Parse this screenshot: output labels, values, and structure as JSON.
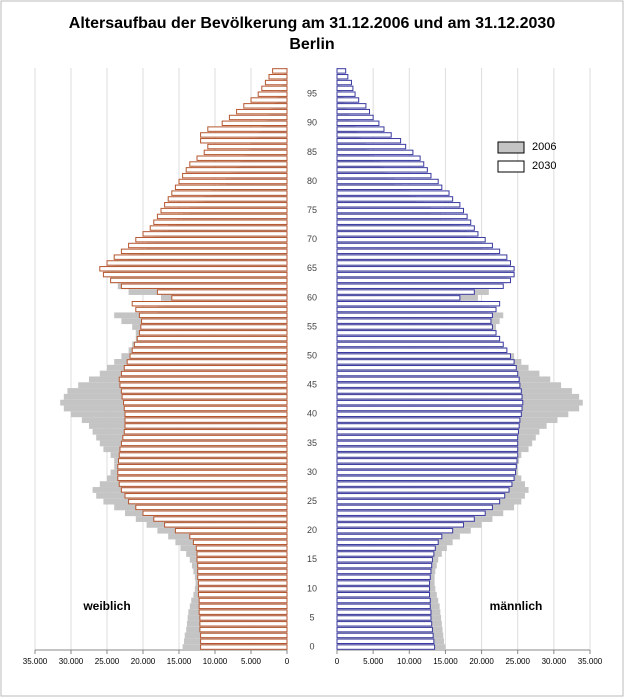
{
  "chart_data": {
    "type": "pyramid",
    "title": "Altersaufbau der Bevölkerung am 31.12.2006 und am 31.12.2030",
    "subtitle": "Berlin",
    "categories": [
      0,
      null,
      null,
      null,
      null,
      5,
      null,
      null,
      null,
      null,
      10,
      null,
      null,
      null,
      null,
      15,
      null,
      null,
      null,
      null,
      20,
      null,
      null,
      null,
      null,
      25,
      null,
      null,
      null,
      null,
      30,
      null,
      null,
      null,
      null,
      35,
      null,
      null,
      null,
      null,
      40,
      null,
      null,
      null,
      null,
      45,
      null,
      null,
      null,
      null,
      50,
      null,
      null,
      null,
      null,
      55,
      null,
      null,
      null,
      null,
      60,
      null,
      null,
      null,
      null,
      65,
      null,
      null,
      null,
      null,
      70,
      null,
      null,
      null,
      null,
      75,
      null,
      null,
      null,
      null,
      80,
      null,
      null,
      null,
      null,
      85,
      null,
      null,
      null,
      null,
      90,
      null,
      null,
      null,
      null,
      95,
      null,
      null,
      null,
      null
    ],
    "sides": {
      "female": {
        "label": "weiblich",
        "xlim": [
          35000,
          0
        ],
        "xticks": [
          {
            "value": 35000,
            "label": "35.000"
          },
          {
            "value": 30000,
            "label": "30.000"
          },
          {
            "value": 25000,
            "label": "25.000"
          },
          {
            "value": 20000,
            "label": "20.000"
          },
          {
            "value": 15000,
            "label": "15.000"
          },
          {
            "value": 10000,
            "label": "10.000"
          },
          {
            "value": 5000,
            "label": "5.000"
          },
          0
        ]
      },
      "male": {
        "label": "männlich",
        "xlim": [
          0,
          35000
        ],
        "xticks": [
          0,
          {
            "value": 5000,
            "label": "5.000"
          },
          {
            "value": 10000,
            "label": "10.000"
          },
          {
            "value": 15000,
            "label": "15.000"
          },
          {
            "value": 20000,
            "label": "20.000"
          },
          {
            "value": 25000,
            "label": "25.000"
          },
          {
            "value": 30000,
            "label": "30.000"
          },
          {
            "value": 35000,
            "label": "35.000"
          }
        ]
      }
    },
    "grid": true,
    "legend": "upper right",
    "series": [
      {
        "name": "2006",
        "color": "#c4c4c4",
        "female": [
          14500,
          14300,
          14200,
          14000,
          13900,
          13800,
          13700,
          13500,
          13300,
          13000,
          12800,
          12700,
          12800,
          13000,
          13200,
          13500,
          14000,
          14800,
          15500,
          16500,
          18000,
          19500,
          21000,
          22500,
          24000,
          25500,
          26500,
          27000,
          26000,
          25000,
          24500,
          24000,
          24000,
          24500,
          25500,
          26000,
          26500,
          27000,
          27500,
          28500,
          30000,
          31000,
          31500,
          31000,
          30500,
          29000,
          27500,
          26000,
          25000,
          24000,
          23000,
          22000,
          21500,
          21000,
          21000,
          21500,
          23000,
          24000,
          18000,
          17000,
          17500,
          22000,
          23500,
          24500,
          25000,
          25500,
          24000,
          22000,
          20500,
          19500,
          18500,
          17500,
          16500,
          15500,
          14500,
          13500,
          12500,
          11500,
          10500,
          9500,
          8500,
          7800,
          7000,
          6500,
          6000,
          5500,
          5000,
          4500,
          4000,
          3500,
          3000,
          2600,
          2200,
          1800,
          1400,
          1100,
          800,
          600,
          400,
          300
        ],
        "male": [
          15000,
          14800,
          14700,
          14600,
          14500,
          14400,
          14300,
          14200,
          14000,
          13800,
          13600,
          13500,
          13500,
          13600,
          13800,
          14000,
          14500,
          15200,
          16000,
          17000,
          18500,
          20000,
          21500,
          23000,
          24500,
          25500,
          26000,
          26500,
          26000,
          25500,
          25000,
          25000,
          25200,
          25500,
          26500,
          27000,
          27500,
          28000,
          29000,
          30500,
          32000,
          33500,
          34000,
          33500,
          32500,
          31000,
          29500,
          28000,
          26500,
          25500,
          24500,
          23500,
          23000,
          22500,
          22000,
          22000,
          22500,
          23000,
          21000,
          20000,
          19500,
          21000,
          22500,
          23500,
          24000,
          24500,
          23500,
          22000,
          21000,
          20000,
          19000,
          18000,
          17000,
          16000,
          14500,
          13000,
          12000,
          11000,
          10000,
          9000,
          8000,
          7000,
          6500,
          6000,
          5000,
          4500,
          4000,
          3500,
          3000,
          2600,
          2200,
          1800,
          1500,
          1200,
          900,
          700,
          500,
          400,
          300,
          200
        ]
      },
      {
        "name": "2030",
        "color": "#ffffff",
        "outline": {
          "female": "#b5562f",
          "male": "#3a3aa0"
        },
        "female": [
          12000,
          12000,
          12000,
          12100,
          12100,
          12100,
          12200,
          12200,
          12200,
          12300,
          12300,
          12300,
          12400,
          12400,
          12400,
          12500,
          12500,
          12600,
          13000,
          13500,
          15500,
          17000,
          18500,
          20000,
          21000,
          22000,
          22500,
          23000,
          23300,
          23500,
          23500,
          23500,
          23400,
          23300,
          23200,
          23000,
          22800,
          22600,
          22500,
          22500,
          22500,
          22600,
          22700,
          22900,
          23000,
          23200,
          23300,
          23000,
          22600,
          22200,
          21800,
          21500,
          21200,
          20800,
          20500,
          20300,
          20200,
          20500,
          21000,
          21500,
          16000,
          18000,
          23000,
          24500,
          25500,
          26000,
          25000,
          24000,
          23000,
          22000,
          21000,
          20000,
          19000,
          18500,
          18000,
          17500,
          17000,
          16500,
          16000,
          15500,
          15000,
          14500,
          14000,
          13500,
          12500,
          11500,
          11000,
          12000,
          12000,
          11000,
          9000,
          8000,
          7000,
          6000,
          5000,
          4000,
          3500,
          3000,
          2500,
          2000
        ],
        "male": [
          13500,
          13400,
          13300,
          13200,
          13100,
          13000,
          13000,
          12900,
          12900,
          12800,
          12800,
          12800,
          12900,
          13000,
          13100,
          13200,
          13400,
          13600,
          14000,
          14500,
          16000,
          17500,
          19000,
          20500,
          21500,
          22500,
          23200,
          23800,
          24200,
          24500,
          24700,
          24800,
          24900,
          25000,
          25000,
          25000,
          25000,
          25100,
          25200,
          25300,
          25500,
          25600,
          25700,
          25600,
          25500,
          25300,
          25200,
          25000,
          24800,
          24500,
          24000,
          23500,
          23000,
          22500,
          22000,
          21500,
          21300,
          21500,
          22000,
          22500,
          17000,
          19000,
          23000,
          24000,
          24500,
          24500,
          24000,
          23500,
          22500,
          21500,
          20500,
          19500,
          19000,
          18500,
          18000,
          17500,
          17000,
          16000,
          15500,
          14500,
          14000,
          13000,
          12500,
          12000,
          11500,
          10500,
          9500,
          8800,
          7500,
          6500,
          5800,
          5000,
          4500,
          4000,
          3000,
          2500,
          2200,
          2000,
          1500,
          1200
        ]
      }
    ]
  }
}
